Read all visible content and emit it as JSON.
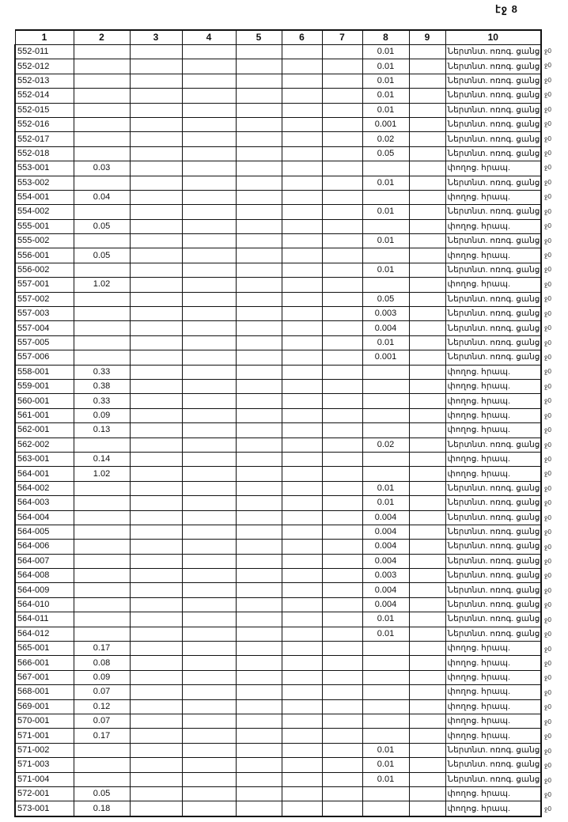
{
  "page_number": "էջ 8",
  "columns": [
    "1",
    "2",
    "3",
    "4",
    "5",
    "6",
    "7",
    "8",
    "9",
    "10"
  ],
  "margin_mark": "ջ0",
  "labels": {
    "A": "Ներտնտ. ոռոգ. ցանց",
    "B": "փողոց. հրապ."
  },
  "rows": [
    {
      "c1": "552-011",
      "c2": "",
      "c8": "0.01",
      "c10": "Ներտնտ. ոռոգ. ցանց"
    },
    {
      "c1": "552-012",
      "c2": "",
      "c8": "0.01",
      "c10": "Ներտնտ. ոռոգ. ցանց"
    },
    {
      "c1": "552-013",
      "c2": "",
      "c8": "0.01",
      "c10": "Ներտնտ. ոռոգ. ցանց"
    },
    {
      "c1": "552-014",
      "c2": "",
      "c8": "0.01",
      "c10": "Ներտնտ. ոռոգ. ցանց"
    },
    {
      "c1": "552-015",
      "c2": "",
      "c8": "0.01",
      "c10": "Ներտնտ. ոռոգ. ցանց"
    },
    {
      "c1": "552-016",
      "c2": "",
      "c8": "0.001",
      "c10": "Ներտնտ. ոռոգ. ցանց"
    },
    {
      "c1": "552-017",
      "c2": "",
      "c8": "0.02",
      "c10": "Ներտնտ. ոռոգ. ցանց"
    },
    {
      "c1": "552-018",
      "c2": "",
      "c8": "0.05",
      "c10": "Ներտնտ. ոռոգ. ցանց"
    },
    {
      "c1": "553-001",
      "c2": "0.03",
      "c8": "",
      "c10": "փողոց. հրապ."
    },
    {
      "c1": "553-002",
      "c2": "",
      "c8": "0.01",
      "c10": "Ներտնտ. ոռոգ. ցանց"
    },
    {
      "c1": "554-001",
      "c2": "0.04",
      "c8": "",
      "c10": "փողոց. հրապ."
    },
    {
      "c1": "554-002",
      "c2": "",
      "c8": "0.01",
      "c10": "Ներտնտ. ոռոգ. ցանց"
    },
    {
      "c1": "555-001",
      "c2": "0.05",
      "c8": "",
      "c10": "փողոց. հրապ."
    },
    {
      "c1": "555-002",
      "c2": "",
      "c8": "0.01",
      "c10": "Ներտնտ. ոռոգ. ցանց"
    },
    {
      "c1": "556-001",
      "c2": "0.05",
      "c8": "",
      "c10": "փողոց. հրապ."
    },
    {
      "c1": "556-002",
      "c2": "",
      "c8": "0.01",
      "c10": "Ներտնտ. ոռոգ. ցանց"
    },
    {
      "c1": "557-001",
      "c2": "1.02",
      "c8": "",
      "c10": "փողոց. հրապ."
    },
    {
      "c1": "557-002",
      "c2": "",
      "c8": "0.05",
      "c10": "Ներտնտ. ոռոգ. ցանց"
    },
    {
      "c1": "557-003",
      "c2": "",
      "c8": "0.003",
      "c10": "Ներտնտ. ոռոգ. ցանց"
    },
    {
      "c1": "557-004",
      "c2": "",
      "c8": "0.004",
      "c10": "Ներտնտ. ոռոգ. ցանց"
    },
    {
      "c1": "557-005",
      "c2": "",
      "c8": "0.01",
      "c10": "Ներտնտ. ոռոգ. ցանց"
    },
    {
      "c1": "557-006",
      "c2": "",
      "c8": "0.001",
      "c10": "Ներտնտ. ոռոգ. ցանց"
    },
    {
      "c1": "558-001",
      "c2": "0.33",
      "c8": "",
      "c10": "փողոց. հրապ."
    },
    {
      "c1": "559-001",
      "c2": "0.38",
      "c8": "",
      "c10": "փողոց. հրապ."
    },
    {
      "c1": "560-001",
      "c2": "0.33",
      "c8": "",
      "c10": "փողոց. հրապ."
    },
    {
      "c1": "561-001",
      "c2": "0.09",
      "c8": "",
      "c10": "փողոց. հրապ."
    },
    {
      "c1": "562-001",
      "c2": "0.13",
      "c8": "",
      "c10": "փողոց. հրապ."
    },
    {
      "c1": "562-002",
      "c2": "",
      "c8": "0.02",
      "c10": "Ներտնտ. ոռոգ. ցանց"
    },
    {
      "c1": "563-001",
      "c2": "0.14",
      "c8": "",
      "c10": "փողոց. հրապ."
    },
    {
      "c1": "564-001",
      "c2": "1.02",
      "c8": "",
      "c10": "փողոց. հրապ."
    },
    {
      "c1": "564-002",
      "c2": "",
      "c8": "0.01",
      "c10": "Ներտնտ. ոռոգ. ցանց"
    },
    {
      "c1": "564-003",
      "c2": "",
      "c8": "0.01",
      "c10": "Ներտնտ. ոռոգ. ցանց"
    },
    {
      "c1": "564-004",
      "c2": "",
      "c8": "0.004",
      "c10": "Ներտնտ. ոռոգ. ցանց"
    },
    {
      "c1": "564-005",
      "c2": "",
      "c8": "0.004",
      "c10": "Ներտնտ. ոռոգ. ցանց"
    },
    {
      "c1": "564-006",
      "c2": "",
      "c8": "0.004",
      "c10": "Ներտնտ. ոռոգ. ցանց"
    },
    {
      "c1": "564-007",
      "c2": "",
      "c8": "0.004",
      "c10": "Ներտնտ. ոռոգ. ցանց"
    },
    {
      "c1": "564-008",
      "c2": "",
      "c8": "0.003",
      "c10": "Ներտնտ. ոռոգ. ցանց"
    },
    {
      "c1": "564-009",
      "c2": "",
      "c8": "0.004",
      "c10": "Ներտնտ. ոռոգ. ցանց"
    },
    {
      "c1": "564-010",
      "c2": "",
      "c8": "0.004",
      "c10": "Ներտնտ. ոռոգ. ցանց"
    },
    {
      "c1": "564-011",
      "c2": "",
      "c8": "0.01",
      "c10": "Ներտնտ. ոռոգ. ցանց"
    },
    {
      "c1": "564-012",
      "c2": "",
      "c8": "0.01",
      "c10": "Ներտնտ. ոռոգ. ցանց"
    },
    {
      "c1": "565-001",
      "c2": "0.17",
      "c8": "",
      "c10": "փողոց. հրապ."
    },
    {
      "c1": "566-001",
      "c2": "0.08",
      "c8": "",
      "c10": "փողոց. հրապ."
    },
    {
      "c1": "567-001",
      "c2": "0.09",
      "c8": "",
      "c10": "փողոց. հրապ."
    },
    {
      "c1": "568-001",
      "c2": "0.07",
      "c8": "",
      "c10": "փողոց. հրապ."
    },
    {
      "c1": "569-001",
      "c2": "0.12",
      "c8": "",
      "c10": "փողոց. հրապ."
    },
    {
      "c1": "570-001",
      "c2": "0.07",
      "c8": "",
      "c10": "փողոց. հրապ."
    },
    {
      "c1": "571-001",
      "c2": "0.17",
      "c8": "",
      "c10": "փողոց. հրապ."
    },
    {
      "c1": "571-002",
      "c2": "",
      "c8": "0.01",
      "c10": "Ներտնտ. ոռոգ. ցանց"
    },
    {
      "c1": "571-003",
      "c2": "",
      "c8": "0.01",
      "c10": "Ներտնտ. ոռոգ. ցանց"
    },
    {
      "c1": "571-004",
      "c2": "",
      "c8": "0.01",
      "c10": "Ներտնտ. ոռոգ. ցանց"
    },
    {
      "c1": "572-001",
      "c2": "0.05",
      "c8": "",
      "c10": "փողոց. հրապ."
    },
    {
      "c1": "573-001",
      "c2": "0.18",
      "c8": "",
      "c10": "փողոց. հրապ."
    }
  ]
}
